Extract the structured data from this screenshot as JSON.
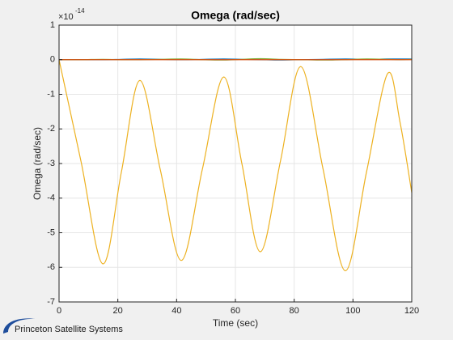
{
  "chart_data": {
    "type": "line",
    "title": "Omega (rad/sec)",
    "x_label": "Time (sec)",
    "y_label": "Omega (rad/sec)",
    "y_exponent_base": "×10",
    "y_exponent_power": "-14",
    "logo_text": "Princeton Satellite Systems",
    "x": [
      0,
      7.5,
      14.9,
      21.2,
      27.5,
      34.5,
      41.6,
      48.8,
      56,
      62.2,
      68.5,
      75.4,
      82.3,
      89.8,
      97.4,
      104.6,
      111.8,
      116,
      120
    ],
    "series": [
      {
        "color": "#0072BD",
        "values": [
          0,
          0,
          0,
          0.01,
          0.02,
          0.01,
          0,
          0.01,
          0.02,
          0.01,
          0,
          -0.01,
          0,
          0.01,
          0.02,
          0.01,
          0.02,
          0.02,
          0.02
        ]
      },
      {
        "color": "#77AC30",
        "values": [
          0,
          0,
          0.01,
          0,
          0,
          0.01,
          0.02,
          0,
          -0.01,
          0.01,
          0.03,
          0.01,
          0,
          -0.01,
          0,
          0.02,
          0.01,
          0,
          0.01
        ]
      },
      {
        "color": "#D95319",
        "values": [
          0,
          0,
          0,
          0,
          0,
          0,
          0,
          0,
          0,
          0,
          0,
          0,
          0,
          0,
          0,
          0,
          0,
          0,
          0
        ]
      },
      {
        "color": "#EDB120",
        "values": [
          0,
          -2.95,
          -5.9,
          -3.25,
          -0.6,
          -3.2,
          -5.8,
          -3.15,
          -0.5,
          -3.0,
          -5.55,
          -2.9,
          -0.2,
          -3.15,
          -6.1,
          -3.25,
          -0.4,
          -1.8,
          -3.84
        ]
      }
    ],
    "xlim": [
      0,
      120
    ],
    "xticks": [
      0,
      20,
      40,
      60,
      80,
      100,
      120
    ],
    "ylim": [
      -7,
      1
    ],
    "yticks": [
      -7,
      -6,
      -5,
      -4,
      -3,
      -2,
      -1,
      0,
      1
    ],
    "grid": true
  }
}
